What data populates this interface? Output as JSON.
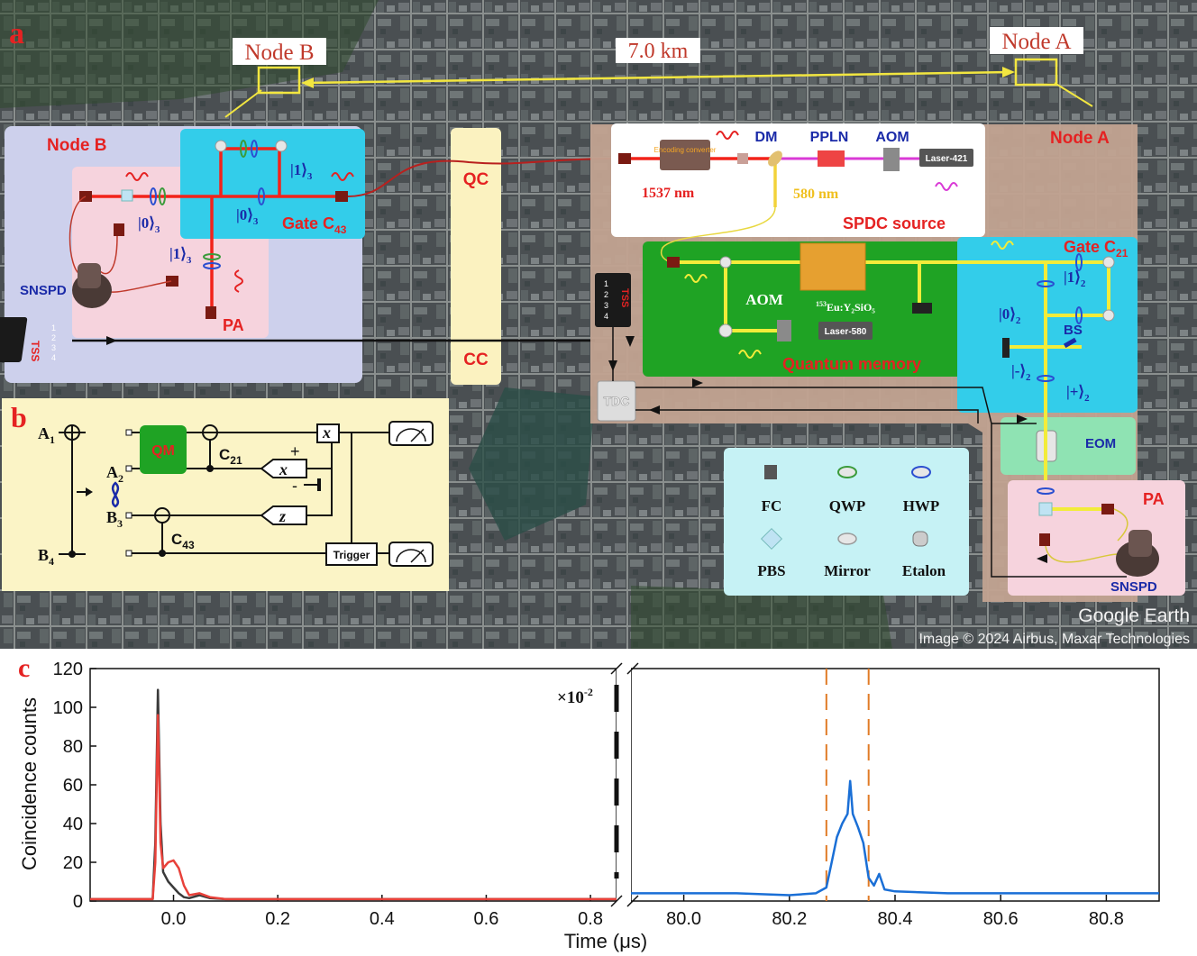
{
  "panel_a": {
    "label": "a",
    "node_b_map_label": "Node B",
    "node_a_map_label": "Node A",
    "distance_label": "7.0 km",
    "google_earth": "Google Earth",
    "image_credit": "Image © 2024 Airbus, Maxar Technologies",
    "node_b": {
      "title": "Node B",
      "gate_label": "Gate C",
      "gate_sub": "43",
      "ket_1_top": "|1⟩",
      "ket_0": "|0⟩",
      "ket_1_vertical": "|1⟩",
      "ket_0_left": "|0⟩",
      "ket_sub": "3",
      "snspd": "SNSPD",
      "pa": "PA",
      "tss": "TSS",
      "tss_ports": [
        "1",
        "2",
        "3",
        "4"
      ]
    },
    "qc": "QC",
    "cc": "CC",
    "node_a": {
      "title": "Node A",
      "encoding_converter": "Encoding converter",
      "dm": "DM",
      "ppln": "PPLN",
      "aom_top": "AOM",
      "laser_421": "Laser-421",
      "wl_1537": "1537 nm",
      "wl_580": "580 nm",
      "spdc": "SPDC source",
      "gate_label": "Gate C",
      "gate_sub": "21",
      "ket_1": "|1⟩",
      "ket_0": "|0⟩",
      "ket_minus": "|-⟩",
      "ket_plus": "|+⟩",
      "ket_sub": "2",
      "bs": "BS",
      "eu_label_sup": "153",
      "eu_label": "Eu:Y₂SiO₅",
      "aom_mem": "AOM",
      "laser_580": "Laser-580",
      "quantum_memory": "Quantum memory",
      "tdc": "TDC",
      "eom": "EOM",
      "pa": "PA",
      "snspd": "SNSPD",
      "tss": "TSS",
      "tss_ports": [
        "1",
        "2",
        "3",
        "4"
      ]
    },
    "legend": {
      "items": [
        "FC",
        "QWP",
        "HWP",
        "PBS",
        "Mirror",
        "Etalon"
      ]
    }
  },
  "panel_b": {
    "label": "b",
    "a1": "A",
    "a1_sub": "1",
    "b4": "B",
    "b4_sub": "4",
    "a2": "A",
    "a2_sub": "2",
    "b3": "B",
    "b3_sub": "3",
    "qm": "QM",
    "c21": "C",
    "c21_sub": "21",
    "c43": "C",
    "c43_sub": "43",
    "x_gate": "x",
    "x_meas": "x",
    "z_meas": "z",
    "plus": "+",
    "minus": "-",
    "trigger": "Trigger"
  },
  "panel_c": {
    "label": "c",
    "scale_note": "×10",
    "scale_note_exp": "-2",
    "colors": {
      "black": "#3a3a3a",
      "red": "#e8413a",
      "blue": "#1a6fd6",
      "dash": "#e07b26"
    },
    "chart_data": {
      "type": "line",
      "xlabel": "Time (μs)",
      "ylabel": "Coincidence counts",
      "ylim": [
        0,
        120
      ],
      "yticks": [
        "0",
        "20",
        "40",
        "60",
        "80",
        "100",
        "120"
      ],
      "left_xlim": [
        -0.16,
        0.85
      ],
      "left_xticks": [
        "0.0",
        "0.2",
        "0.4",
        "0.6",
        "0.8"
      ],
      "right_xlim": [
        79.9,
        80.9
      ],
      "right_xticks": [
        "80.0",
        "80.2",
        "80.4",
        "80.6",
        "80.8"
      ],
      "right_dashed_lines_x": [
        80.27,
        80.35
      ],
      "series": [
        {
          "axis": "left",
          "x": [
            -0.16,
            -0.04,
            -0.035,
            -0.03,
            -0.025,
            -0.02,
            -0.01,
            0.0,
            0.01,
            0.02,
            0.03,
            0.05,
            0.07,
            0.1,
            0.3,
            0.5,
            0.85
          ],
          "y": [
            1,
            1,
            30,
            109,
            40,
            15,
            10,
            7,
            4,
            2,
            1.5,
            3,
            1.5,
            1,
            1,
            1,
            1
          ]
        },
        {
          "axis": "left",
          "x": [
            -0.16,
            -0.04,
            -0.035,
            -0.03,
            -0.025,
            -0.02,
            -0.01,
            0.0,
            0.01,
            0.02,
            0.03,
            0.05,
            0.07,
            0.1,
            0.3,
            0.5,
            0.85
          ],
          "y": [
            1,
            1,
            20,
            96,
            30,
            17,
            20,
            21,
            17,
            8,
            3,
            4,
            2,
            1,
            1,
            1,
            1
          ]
        },
        {
          "axis": "right",
          "x": [
            79.9,
            80.0,
            80.1,
            80.2,
            80.25,
            80.27,
            80.28,
            80.29,
            80.3,
            80.31,
            80.315,
            80.32,
            80.33,
            80.34,
            80.35,
            80.36,
            80.37,
            80.38,
            80.4,
            80.5,
            80.6,
            80.7,
            80.8,
            80.9
          ],
          "y": [
            4,
            4,
            4,
            3,
            4,
            7,
            20,
            33,
            40,
            45,
            62,
            45,
            38,
            30,
            12,
            8,
            14,
            6,
            5,
            4,
            4,
            4,
            4,
            4
          ]
        }
      ]
    }
  }
}
